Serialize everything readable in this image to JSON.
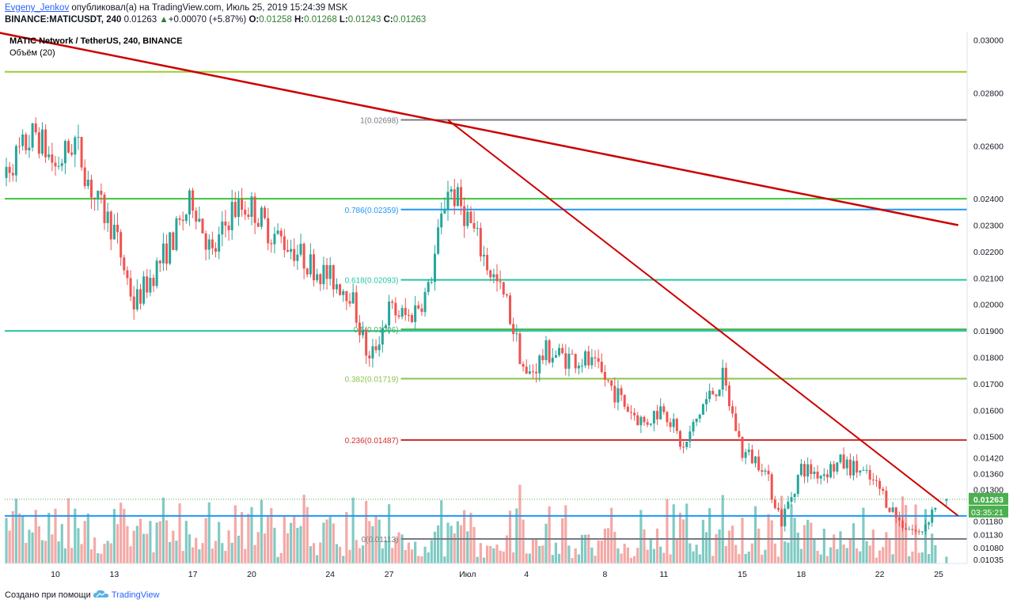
{
  "header": {
    "author": "Evgeny_Jenkov",
    "published_text": "опубликовал(а) на TradingView.com, Июль 25, 2019 15:24:39 MSK",
    "symbol": "BINANCE:MATICUSDT, 240",
    "last": "0.01263",
    "change_arrow": "▲",
    "change": "+0.00070 (+5.87%)",
    "ohlc": [
      {
        "label": "O:",
        "value": "0.01258"
      },
      {
        "label": "H:",
        "value": "0.01268"
      },
      {
        "label": "L:",
        "value": "0.01243"
      },
      {
        "label": "C:",
        "value": "0.01263"
      }
    ]
  },
  "legend": {
    "title": "MATIC Network / TetherUS, 240, BINANCE",
    "volume": "Объём (20)"
  },
  "footer": {
    "created_with": "Создано при помощи",
    "brand": "TradingView",
    "logo_icon": "tradingview-cloud-icon"
  },
  "colors": {
    "up": "#26a69a",
    "down": "#ef5350",
    "vol_up": "#80cbc4",
    "vol_down": "#f4a9a6",
    "trendline": "#cc0000",
    "price_badge": "#4caf50"
  },
  "chart_data": {
    "type": "candlestick",
    "title": "MATIC Network / TetherUS, 240, BINANCE",
    "y_range": [
      0.0102,
      0.0302
    ],
    "y_ticks": [
      "0.03000",
      "0.02800",
      "0.02600",
      "0.02400",
      "0.02300",
      "0.02200",
      "0.02100",
      "0.02000",
      "0.01900",
      "0.01800",
      "0.01700",
      "0.01600",
      "0.01500",
      "0.01420",
      "0.01360",
      "0.01300",
      "0.01263",
      "0.01180",
      "0.01130",
      "0.01080",
      "0.01035"
    ],
    "x_ticks": [
      "10",
      "13",
      "17",
      "20",
      "24",
      "27",
      "Июл",
      "4",
      "8",
      "11",
      "15",
      "18",
      "22",
      "25"
    ],
    "current_price": "0.01263",
    "countdown": "03:35:21",
    "close_path": [
      {
        "date": "Jun 7",
        "close": 0.0247
      },
      {
        "date": "Jun 9",
        "close": 0.0265
      },
      {
        "date": "Jun 10",
        "close": 0.0252
      },
      {
        "date": "Jun 11",
        "close": 0.0262
      },
      {
        "date": "Jun 12",
        "close": 0.024
      },
      {
        "date": "Jun 13",
        "close": 0.0228
      },
      {
        "date": "Jun 14",
        "close": 0.02
      },
      {
        "date": "Jun 15",
        "close": 0.0212
      },
      {
        "date": "Jun 16",
        "close": 0.0225
      },
      {
        "date": "Jun 17",
        "close": 0.024
      },
      {
        "date": "Jun 18",
        "close": 0.0218
      },
      {
        "date": "Jun 19",
        "close": 0.0236
      },
      {
        "date": "Jun 20",
        "close": 0.0237
      },
      {
        "date": "Jun 21",
        "close": 0.0227
      },
      {
        "date": "Jun 22",
        "close": 0.0222
      },
      {
        "date": "Jun 23",
        "close": 0.0215
      },
      {
        "date": "Jun 24",
        "close": 0.021
      },
      {
        "date": "Jun 25",
        "close": 0.0205
      },
      {
        "date": "Jun 26",
        "close": 0.0178
      },
      {
        "date": "Jun 27",
        "close": 0.0198
      },
      {
        "date": "Jun 28",
        "close": 0.0195
      },
      {
        "date": "Jun 29",
        "close": 0.0205
      },
      {
        "date": "Jun 30",
        "close": 0.0245
      },
      {
        "date": "Jul 1",
        "close": 0.0233
      },
      {
        "date": "Jul 2",
        "close": 0.0215
      },
      {
        "date": "Jul 3",
        "close": 0.02
      },
      {
        "date": "Jul 4",
        "close": 0.0172
      },
      {
        "date": "Jul 5",
        "close": 0.0182
      },
      {
        "date": "Jul 6",
        "close": 0.018
      },
      {
        "date": "Jul 7",
        "close": 0.0179
      },
      {
        "date": "Jul 8",
        "close": 0.0172
      },
      {
        "date": "Jul 9",
        "close": 0.0162
      },
      {
        "date": "Jul 10",
        "close": 0.0155
      },
      {
        "date": "Jul 11",
        "close": 0.0162
      },
      {
        "date": "Jul 12",
        "close": 0.0145
      },
      {
        "date": "Jul 13",
        "close": 0.0162
      },
      {
        "date": "Jul 14",
        "close": 0.0172
      },
      {
        "date": "Jul 15",
        "close": 0.0144
      },
      {
        "date": "Jul 16",
        "close": 0.014
      },
      {
        "date": "Jul 17",
        "close": 0.0118
      },
      {
        "date": "Jul 18",
        "close": 0.0138
      },
      {
        "date": "Jul 19",
        "close": 0.0136
      },
      {
        "date": "Jul 20",
        "close": 0.014
      },
      {
        "date": "Jul 21",
        "close": 0.0137
      },
      {
        "date": "Jul 22",
        "close": 0.013
      },
      {
        "date": "Jul 23",
        "close": 0.0118
      },
      {
        "date": "Jul 24",
        "close": 0.0113
      },
      {
        "date": "Jul 25",
        "close": 0.01263
      }
    ],
    "fib_levels": [
      {
        "label": "1(0.02698)",
        "value": 0.02698,
        "color": "#787b86"
      },
      {
        "label": "0.786(0.02359)",
        "value": 0.02359,
        "color": "#2196f3"
      },
      {
        "label": "0.618(0.02093)",
        "value": 0.02093,
        "color": "#26c6a0"
      },
      {
        "label": "0.5(0.01906)",
        "value": 0.01906,
        "color": "#4caf50"
      },
      {
        "label": "0.382(0.01719)",
        "value": 0.01719,
        "color": "#8bc34a"
      },
      {
        "label": "0.236(0.01487)",
        "value": 0.01487,
        "color": "#d32f2f"
      },
      {
        "label": "0(0.01113)",
        "value": 0.01113,
        "color": "#787b86"
      }
    ],
    "horizontal_lines": [
      {
        "value": 0.0288,
        "color": "#9ccc2e"
      },
      {
        "value": 0.024,
        "color": "#3cc43c"
      },
      {
        "value": 0.019,
        "color": "#26c6a0"
      },
      {
        "value": 0.012,
        "color": "#2196f3"
      }
    ],
    "trendlines": [
      {
        "from": {
          "date": "Jun 7",
          "value": 0.0303
        },
        "to": {
          "date": "Jul 26",
          "value": 0.023
        }
      },
      {
        "from": {
          "date": "Jun 30",
          "value": 0.02698
        },
        "to": {
          "date": "Jul 26",
          "value": 0.012
        }
      }
    ]
  }
}
